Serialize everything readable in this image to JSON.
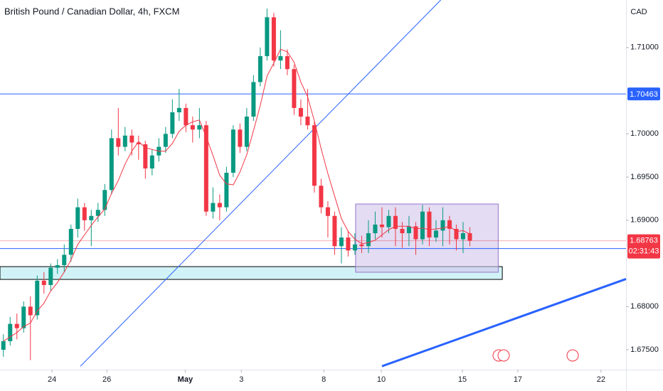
{
  "chart_data": {
    "type": "candlestick",
    "title": "British Pound / Canadian Dollar, 4h, FXCM",
    "currency": "CAD",
    "up_color": "#089981",
    "down_color": "#f23645",
    "ohlc": [
      [
        1.675,
        1.6768,
        1.6742,
        1.676
      ],
      [
        1.676,
        1.6788,
        1.6755,
        1.678
      ],
      [
        1.678,
        1.6792,
        1.6762,
        1.6775
      ],
      [
        1.6775,
        1.6806,
        1.677,
        1.68
      ],
      [
        1.68,
        1.6812,
        1.6738,
        1.679
      ],
      [
        1.679,
        1.6836,
        1.6785,
        1.683
      ],
      [
        1.683,
        1.684,
        1.6815,
        1.6825
      ],
      [
        1.6825,
        1.685,
        1.6818,
        1.6845
      ],
      [
        1.6845,
        1.6855,
        1.6838,
        1.6848
      ],
      [
        1.6848,
        1.6872,
        1.684,
        1.686
      ],
      [
        1.686,
        1.6895,
        1.6852,
        1.689
      ],
      [
        1.689,
        1.6925,
        1.688,
        1.6915
      ],
      [
        1.6915,
        1.692,
        1.6888,
        1.69
      ],
      [
        1.69,
        1.6912,
        1.687,
        1.6905
      ],
      [
        1.6905,
        1.692,
        1.6898,
        1.6912
      ],
      [
        1.6912,
        1.6942,
        1.6905,
        1.6935
      ],
      [
        1.6935,
        1.7005,
        1.693,
        1.6995
      ],
      [
        1.6995,
        1.703,
        1.6975,
        1.6985
      ],
      [
        1.6985,
        1.7008,
        1.698,
        1.6998
      ],
      [
        1.6998,
        1.7005,
        1.6975,
        1.699
      ],
      [
        1.699,
        1.6998,
        1.697,
        1.6988
      ],
      [
        1.6988,
        1.6992,
        1.6948,
        1.696
      ],
      [
        1.696,
        1.6982,
        1.6952,
        1.6975
      ],
      [
        1.6975,
        1.6995,
        1.6968,
        1.6985
      ],
      [
        1.6985,
        1.7008,
        1.6978,
        1.7
      ],
      [
        1.7,
        1.704,
        1.6995,
        1.7025
      ],
      [
        1.7025,
        1.7052,
        1.7015,
        1.703
      ],
      [
        1.703,
        1.7035,
        1.7002,
        1.701
      ],
      [
        1.701,
        1.702,
        1.699,
        1.7005
      ],
      [
        1.7005,
        1.703,
        1.6995,
        1.701
      ],
      [
        1.701,
        1.7015,
        1.6905,
        1.691
      ],
      [
        1.691,
        1.6938,
        1.6902,
        1.692
      ],
      [
        1.692,
        1.693,
        1.69,
        1.6915
      ],
      [
        1.6915,
        1.6962,
        1.691,
        1.6955
      ],
      [
        1.6955,
        1.701,
        1.695,
        1.7005
      ],
      [
        1.7005,
        1.7012,
        1.6978,
        1.6985
      ],
      [
        1.6985,
        1.703,
        1.698,
        1.702
      ],
      [
        1.702,
        1.7068,
        1.7015,
        1.706
      ],
      [
        1.706,
        1.71,
        1.7055,
        1.709
      ],
      [
        1.709,
        1.7145,
        1.7085,
        1.7135
      ],
      [
        1.7135,
        1.714,
        1.7078,
        1.7085
      ],
      [
        1.7085,
        1.712,
        1.7075,
        1.709
      ],
      [
        1.709,
        1.7098,
        1.7068,
        1.7075
      ],
      [
        1.7075,
        1.708,
        1.7022,
        1.703
      ],
      [
        1.703,
        1.704,
        1.701,
        1.702
      ],
      [
        1.702,
        1.7052,
        1.7005,
        1.701
      ],
      [
        1.701,
        1.7015,
        1.6932,
        1.694
      ],
      [
        1.694,
        1.6948,
        1.6908,
        1.6915
      ],
      [
        1.6915,
        1.6922,
        1.688,
        1.6905
      ],
      [
        1.6905,
        1.691,
        1.686,
        1.687
      ],
      [
        1.687,
        1.6892,
        1.685,
        1.688
      ],
      [
        1.688,
        1.6888,
        1.6858,
        1.6865
      ],
      [
        1.6865,
        1.6885,
        1.686,
        1.6872
      ],
      [
        1.6872,
        1.6882,
        1.6862,
        1.687
      ],
      [
        1.687,
        1.69,
        1.6862,
        1.6885
      ],
      [
        1.6885,
        1.691,
        1.6878,
        1.6895
      ],
      [
        1.6895,
        1.6915,
        1.688,
        1.6892
      ],
      [
        1.6892,
        1.6912,
        1.6885,
        1.6905
      ],
      [
        1.6905,
        1.6915,
        1.687,
        1.689
      ],
      [
        1.689,
        1.6898,
        1.6868,
        1.6885
      ],
      [
        1.6885,
        1.6905,
        1.687,
        1.6893
      ],
      [
        1.6893,
        1.6898,
        1.686,
        1.6878
      ],
      [
        1.6878,
        1.6918,
        1.6872,
        1.691
      ],
      [
        1.691,
        1.6915,
        1.687,
        1.688
      ],
      [
        1.688,
        1.69,
        1.6875,
        1.6888
      ],
      [
        1.6888,
        1.6915,
        1.687,
        1.69
      ],
      [
        1.69,
        1.6905,
        1.6872,
        1.689
      ],
      [
        1.689,
        1.6895,
        1.6865,
        1.6878
      ],
      [
        1.6878,
        1.6898,
        1.6862,
        1.6885
      ],
      [
        1.6885,
        1.6892,
        1.687,
        1.68763
      ]
    ],
    "ma": {
      "color": "#f23645",
      "values": [
        1.676,
        1.6765,
        1.677,
        1.6777,
        1.6781,
        1.6795,
        1.6804,
        1.6818,
        1.6828,
        1.684,
        1.6854,
        1.6872,
        1.6883,
        1.6894,
        1.6904,
        1.6913,
        1.6931,
        1.6946,
        1.6965,
        1.698,
        1.6991,
        1.6984,
        1.6982,
        1.698,
        1.698,
        1.6989,
        1.7003,
        1.701,
        1.7014,
        1.7016,
        1.6997,
        1.6975,
        1.6952,
        1.6942,
        1.6941,
        1.6956,
        1.6976,
        1.7004,
        1.7033,
        1.7067,
        1.7082,
        1.7098,
        1.7095,
        1.7083,
        1.706,
        1.7043,
        1.7015,
        1.6983,
        1.6954,
        1.6928,
        1.6902,
        1.6887,
        1.6878,
        1.6873,
        1.6874,
        1.6877,
        1.6883,
        1.6889,
        1.6893,
        1.6893,
        1.6893,
        1.689,
        1.6891,
        1.6889,
        1.689,
        1.6891,
        1.6893,
        1.6887,
        1.6888,
        1.6884
      ]
    },
    "xlim": [
      -0.5,
      92.1
    ],
    "xticks": [
      {
        "value": 7.2,
        "label": "24"
      },
      {
        "value": 15.3,
        "label": "26"
      },
      {
        "value": 26.9,
        "label": "May"
      },
      {
        "value": 35.2,
        "label": "3"
      },
      {
        "value": 47.4,
        "label": "8"
      },
      {
        "value": 55.9,
        "label": "10"
      },
      {
        "value": 67.9,
        "label": "15"
      },
      {
        "value": 76.1,
        "label": "17"
      },
      {
        "value": 88.4,
        "label": "22"
      }
    ],
    "ylim": [
      1.6727,
      1.7155
    ],
    "yticks": [
      {
        "value": 1.675,
        "label": "1.67500"
      },
      {
        "value": 1.68,
        "label": "1.68000"
      },
      {
        "value": 1.69,
        "label": "1.69000"
      },
      {
        "value": 1.695,
        "label": "1.69500"
      },
      {
        "value": 1.7,
        "label": "1.70000"
      },
      {
        "value": 1.71,
        "label": "1.71000"
      }
    ],
    "hlines": [
      {
        "value": 1.70463,
        "color": "#2962ff"
      },
      {
        "value": 1.68672,
        "color": "#2962ff"
      }
    ],
    "last_price": {
      "value": 1.68763,
      "countdown": "02:31:43",
      "color": "#f23645"
    },
    "zones": [
      {
        "x": [
          -0.5,
          73.8
        ],
        "y": [
          1.68315,
          1.68463
        ],
        "fill": "#b2ebf2",
        "stroke": "#000000"
      },
      {
        "x": [
          52.1,
          73.2
        ],
        "y": [
          1.68398,
          1.69188
        ],
        "fill": "#d1c4e9",
        "stroke": "#9575cd"
      }
    ],
    "trendlines": [
      {
        "x": [
          11.4,
          64.7
        ],
        "y": [
          1.6731,
          1.7155
        ],
        "color": "#2962ff",
        "width": 1
      },
      {
        "x": [
          56.0,
          92.1
        ],
        "y": [
          1.6731,
          1.6832
        ],
        "color": "#2962ff",
        "width": 3
      }
    ]
  }
}
